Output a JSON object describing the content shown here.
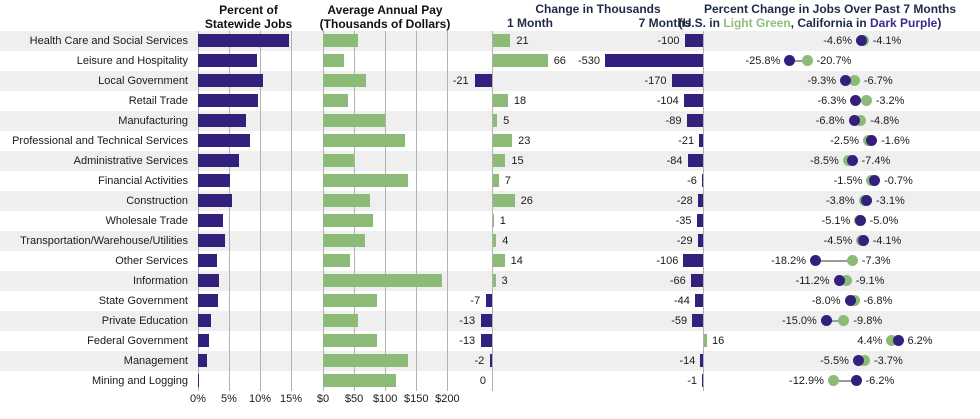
{
  "titles": {
    "panel1_line1": "Percent of",
    "panel1_line2": "Statewide Jobs",
    "panel2_line1": "Average Annual Pay",
    "panel2_line2": "(Thousands of Dollars)",
    "panel3_title": "Change in Thousands",
    "panel3_col1": "1 Month",
    "panel3_col2": "7 Months",
    "panel4_line1": "Percent Change in Jobs Over Past 7 Months",
    "panel4_sub_prefix": "(U.S. in ",
    "panel4_sub_green": "Light Green",
    "panel4_sub_mid": ", California in ",
    "panel4_sub_purple": "Dark Purple",
    "panel4_sub_suffix": ")"
  },
  "colors": {
    "dark_purple": "#33207C",
    "light_green": "#8CBB78",
    "green_text": "#8FBE78",
    "purple_text": "#3D2B8E",
    "stripe_gray": "#EFEFEF",
    "grid_gray": "#B2B2B2",
    "connector_gray": "#9A9A9A",
    "header_navy": "#1F2A47"
  },
  "axes": {
    "pct_tick_labels": [
      "0%",
      "5%",
      "10%",
      "15%"
    ],
    "pct_tick_values": [
      0,
      5,
      10,
      15
    ],
    "pay_tick_labels": [
      "$0",
      "$50",
      "$100",
      "$150",
      "$200"
    ],
    "pay_tick_values": [
      0,
      50,
      100,
      150,
      200
    ]
  },
  "chart_data": {
    "type": "bar",
    "categories": [
      "Health Care and Social Services",
      "Leisure and Hospitality",
      "Local Government",
      "Retail Trade",
      "Manufacturing",
      "Professional and Technical Services",
      "Administrative Services",
      "Financial Activities",
      "Construction",
      "Wholesale Trade",
      "Transportation/Warehouse/Utilities",
      "Other Services",
      "Information",
      "State Government",
      "Private Education",
      "Federal Government",
      "Management",
      "Mining and Logging"
    ],
    "panels": [
      {
        "id": "pct_statewide_jobs",
        "type": "bar",
        "title": "Percent of Statewide Jobs",
        "xlim": [
          0,
          16
        ],
        "values": [
          14.7,
          9.5,
          10.4,
          9.6,
          7.7,
          8.4,
          6.6,
          5.2,
          5.4,
          4.1,
          4.4,
          3.0,
          3.4,
          3.2,
          2.1,
          1.7,
          1.5,
          0.1
        ]
      },
      {
        "id": "avg_annual_pay",
        "type": "bar",
        "title": "Average Annual Pay (Thousands of Dollars)",
        "xlim": [
          0,
          200
        ],
        "values": [
          56,
          34,
          69,
          40,
          100,
          131,
          49,
          137,
          76,
          80,
          68,
          43,
          191,
          86,
          56,
          87,
          136,
          117
        ]
      },
      {
        "id": "change_in_thousands",
        "type": "bar",
        "title": "Change in Thousands",
        "series": [
          {
            "name": "1 Month",
            "values": [
              21,
              66,
              -21,
              18,
              5,
              23,
              15,
              7,
              26,
              1,
              4,
              14,
              3,
              -7,
              -13,
              -13,
              -2,
              0
            ]
          },
          {
            "name": "7 Months",
            "values": [
              -100,
              -530,
              -170,
              -104,
              -89,
              -21,
              -84,
              -6,
              -28,
              -35,
              -29,
              -106,
              -66,
              -44,
              -59,
              16,
              -14,
              -1
            ]
          }
        ]
      },
      {
        "id": "pct_change_7_months",
        "type": "scatter",
        "title": "Percent Change in Jobs Over Past 7 Months",
        "legend": {
          "U.S.": "light green",
          "California": "dark purple"
        },
        "series": [
          {
            "name": "U.S.",
            "color": "#8CBB78",
            "values": [
              -4.1,
              -20.7,
              -6.7,
              -3.2,
              -4.8,
              -2.5,
              -8.5,
              -1.5,
              -3.8,
              -5.1,
              -4.5,
              -7.3,
              -9.1,
              -6.8,
              -9.8,
              4.4,
              -3.7,
              -12.9
            ]
          },
          {
            "name": "California",
            "color": "#33207C",
            "values": [
              -4.6,
              -25.8,
              -9.3,
              -6.3,
              -6.8,
              -1.6,
              -7.4,
              -0.7,
              -3.1,
              -5.0,
              -4.1,
              -18.2,
              -11.2,
              -8.0,
              -15.0,
              6.2,
              -5.5,
              -6.2
            ]
          }
        ]
      }
    ]
  }
}
